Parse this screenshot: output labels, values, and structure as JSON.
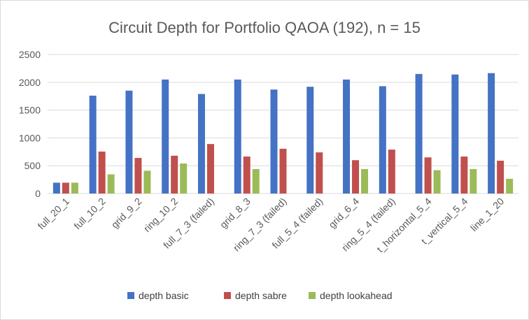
{
  "chart_data": {
    "type": "bar",
    "title": "Circuit Depth for Portfolio QAOA (192), n = 15",
    "xlabel": "",
    "ylabel": "",
    "ylim": [
      0,
      2500
    ],
    "yticks": [
      0,
      500,
      1000,
      1500,
      2000,
      2500
    ],
    "grid": true,
    "legend_position": "bottom",
    "categories": [
      "full_20_1",
      "full_10_2",
      "grid_9_2",
      "ring_10_2",
      "full_7_3 (failed)",
      "grid_8_3",
      "ring_7_3 (failed)",
      "full_5_4 (failed)",
      "grid_6_4",
      "ring_5_4 (failed)",
      "t_horizontal_5_4",
      "t_vertical_5_4",
      "line_1_20"
    ],
    "series": [
      {
        "name": "depth basic",
        "color": "#4472C4",
        "values": [
          195,
          1760,
          1850,
          2050,
          1790,
          2050,
          1870,
          1920,
          2050,
          1930,
          2150,
          2140,
          2165
        ]
      },
      {
        "name": "depth sabre",
        "color": "#C0504D",
        "values": [
          195,
          755,
          640,
          680,
          890,
          665,
          805,
          740,
          600,
          790,
          650,
          665,
          590
        ]
      },
      {
        "name": "depth lookahead",
        "color": "#9BBB59",
        "values": [
          195,
          345,
          410,
          540,
          0,
          440,
          0,
          0,
          440,
          0,
          420,
          440,
          265
        ]
      }
    ]
  }
}
